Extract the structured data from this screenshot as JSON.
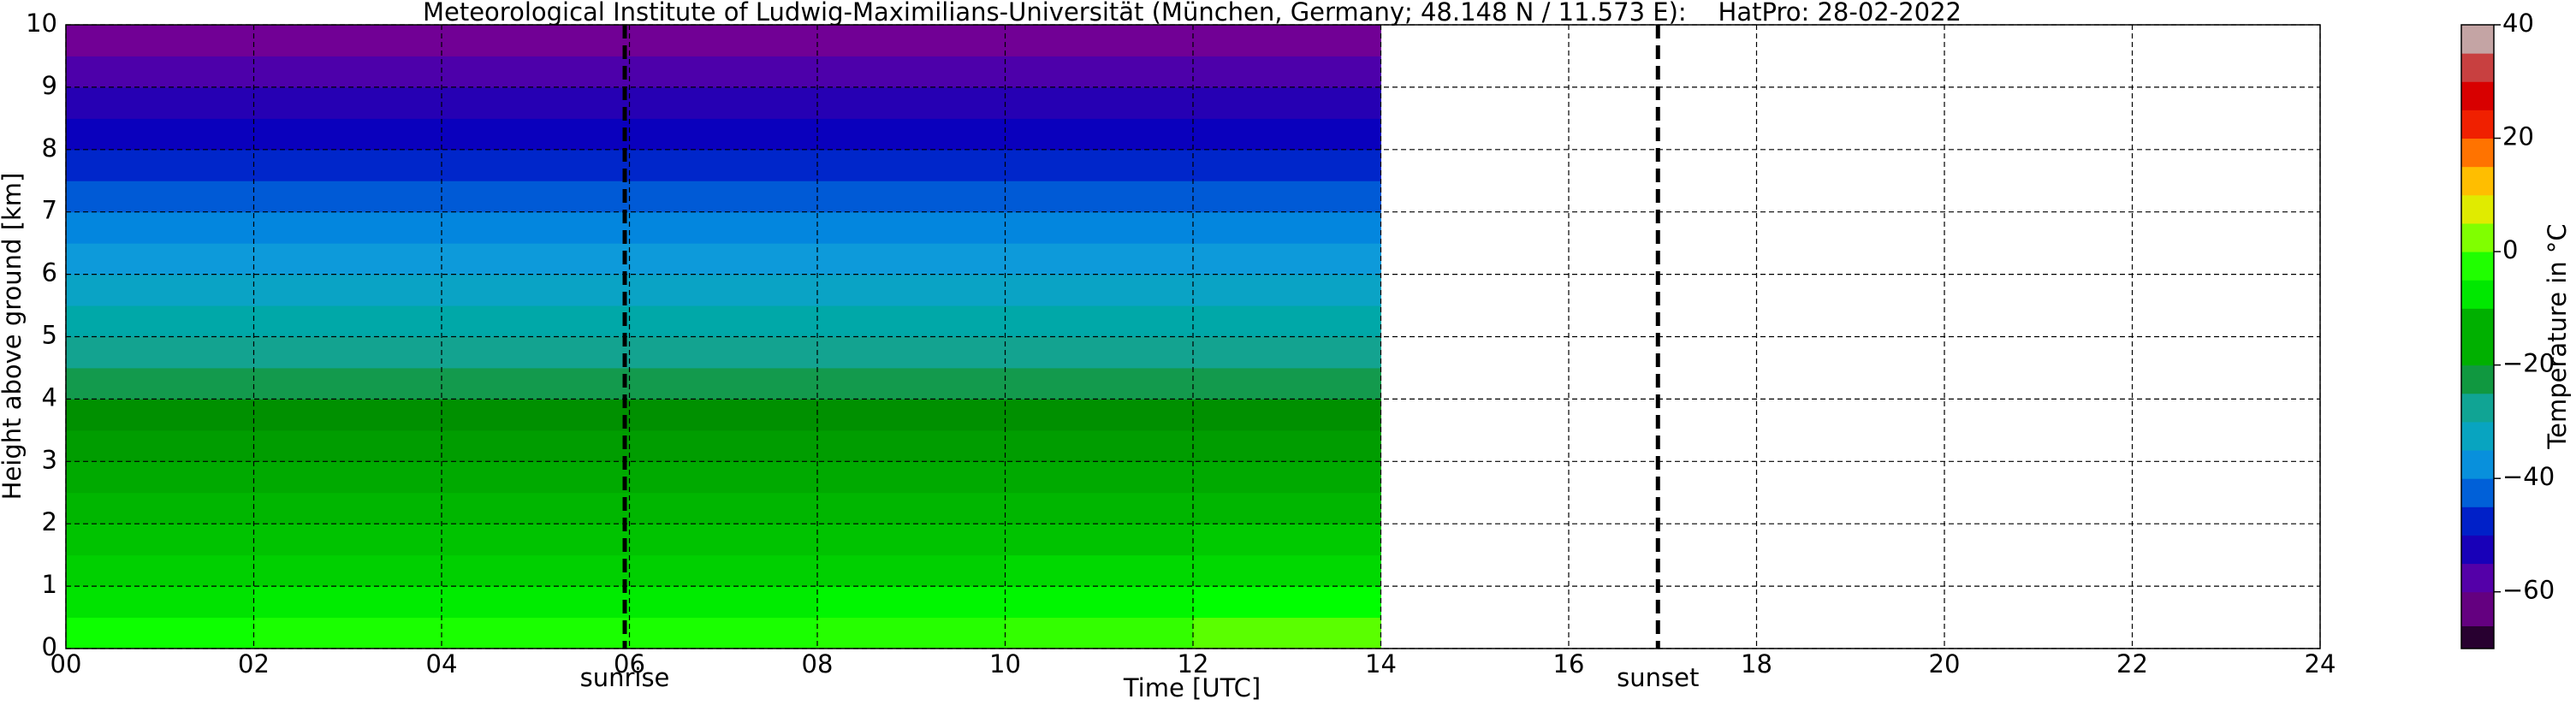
{
  "chart_data": {
    "type": "heatmap",
    "title": "Meteorological Institute of Ludwig-Maximilians-Universität (München, Germany; 48.148 N / 11.573 E):    HatPro: 28-02-2022",
    "xlabel": "Time [UTC]",
    "ylabel": "Height above ground [km]",
    "colorbar_label": "Temperature in °C",
    "x_bins": [
      0,
      2,
      4,
      6,
      8,
      10,
      12,
      14
    ],
    "y_bins": [
      0,
      0.5,
      1,
      1.5,
      2,
      2.5,
      3,
      3.5,
      4,
      4.5,
      5,
      5.5,
      6,
      6.5,
      7,
      7.5,
      8,
      8.5,
      9,
      9.5,
      10
    ],
    "values": [
      [
        -4,
        -3,
        -3,
        -3,
        -2,
        -1,
        1
      ],
      [
        -8,
        -7,
        -7,
        -7,
        -6,
        -6,
        -5
      ],
      [
        -10,
        -10,
        -10,
        -10,
        -10,
        -9,
        -9
      ],
      [
        -12,
        -12,
        -12,
        -12,
        -12,
        -12,
        -11
      ],
      [
        -14,
        -14,
        -14,
        -14,
        -14,
        -14,
        -14
      ],
      [
        -16,
        -16,
        -16,
        -16,
        -16,
        -16,
        -16
      ],
      [
        -18,
        -18,
        -18,
        -18,
        -18,
        -18,
        -18
      ],
      [
        -20,
        -20,
        -20,
        -20,
        -20,
        -20,
        -20
      ],
      [
        -23,
        -23,
        -23,
        -23,
        -23,
        -23,
        -23
      ],
      [
        -27,
        -27,
        -27,
        -27,
        -27,
        -27,
        -27
      ],
      [
        -30,
        -30,
        -30,
        -30,
        -30,
        -30,
        -30
      ],
      [
        -33,
        -33,
        -33,
        -33,
        -33,
        -33,
        -33
      ],
      [
        -36,
        -36,
        -36,
        -36,
        -36,
        -36,
        -36
      ],
      [
        -39,
        -39,
        -39,
        -39,
        -39,
        -39,
        -39
      ],
      [
        -43,
        -43,
        -43,
        -43,
        -43,
        -43,
        -43
      ],
      [
        -47,
        -47,
        -47,
        -47,
        -47,
        -47,
        -47
      ],
      [
        -51,
        -51,
        -51,
        -51,
        -51,
        -51,
        -51
      ],
      [
        -54,
        -54,
        -54,
        -54,
        -54,
        -54,
        -54
      ],
      [
        -57,
        -57,
        -57,
        -57,
        -57,
        -57,
        -57
      ],
      [
        -61,
        -61,
        -61,
        -61,
        -61,
        -61,
        -61
      ]
    ],
    "xlim": [
      0,
      24
    ],
    "xticks": [
      {
        "value": 0,
        "label": "00"
      },
      {
        "value": 2,
        "label": "02"
      },
      {
        "value": 4,
        "label": "04"
      },
      {
        "value": 6,
        "label": "06"
      },
      {
        "value": 8,
        "label": "08"
      },
      10,
      12,
      14,
      16,
      18,
      20,
      22,
      24
    ],
    "ylim": [
      0,
      10
    ],
    "yticks": [
      0,
      1,
      2,
      3,
      4,
      5,
      6,
      7,
      8,
      9,
      10
    ],
    "grid": true,
    "clim": [
      -70,
      40
    ],
    "cticks": [
      {
        "value": -60,
        "label": "−60"
      },
      {
        "value": -40,
        "label": "−40"
      },
      {
        "value": -20,
        "label": "−20"
      },
      0,
      20,
      40
    ],
    "colorscale": [
      {
        "value": -70,
        "color": "#000000"
      },
      {
        "value": -66,
        "color": "#500060"
      },
      {
        "value": -60,
        "color": "#7800a0"
      },
      {
        "value": -55,
        "color": "#3000b0"
      },
      {
        "value": -50,
        "color": "#0000c0"
      },
      {
        "value": -45,
        "color": "#0040d0"
      },
      {
        "value": -40,
        "color": "#0080e0"
      },
      {
        "value": -35,
        "color": "#10a0d8"
      },
      {
        "value": -30,
        "color": "#00a8a8"
      },
      {
        "value": -25,
        "color": "#20a080"
      },
      {
        "value": -20,
        "color": "#009000"
      },
      {
        "value": -10,
        "color": "#00d000"
      },
      {
        "value": -5,
        "color": "#00ff00"
      },
      {
        "value": 0,
        "color": "#40ff00"
      },
      {
        "value": 5,
        "color": "#c0ff00"
      },
      {
        "value": 10,
        "color": "#ffd700"
      },
      {
        "value": 15,
        "color": "#ffa500"
      },
      {
        "value": 20,
        "color": "#ff4000"
      },
      {
        "value": 25,
        "color": "#e00000"
      },
      {
        "value": 30,
        "color": "#d00000"
      },
      {
        "value": 35,
        "color": "#c08080"
      },
      {
        "value": 40,
        "color": "#c8c8c8"
      }
    ],
    "vlines": [
      {
        "x": 5.95,
        "label": "sunrise"
      },
      {
        "x": 16.95,
        "label": "sunset"
      }
    ]
  }
}
